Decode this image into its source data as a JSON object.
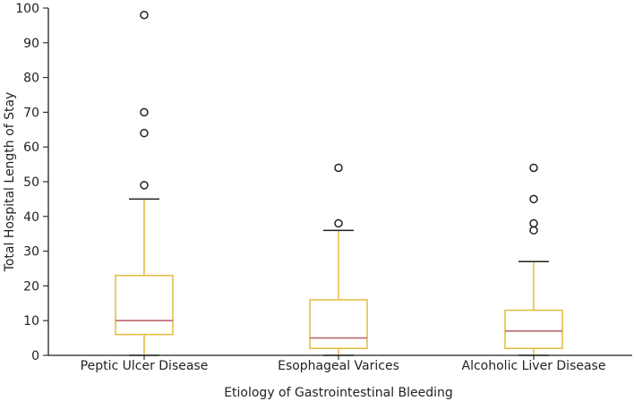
{
  "chart_data": {
    "type": "boxplot",
    "title": "",
    "xlabel": "Etiology of Gastrointestinal Bleeding",
    "ylabel": "Total Hospital Length of Stay",
    "ylim": [
      0,
      100
    ],
    "yticks": [
      0,
      10,
      20,
      30,
      40,
      50,
      60,
      70,
      80,
      90,
      100
    ],
    "grid": false,
    "categories": [
      "Peptic Ulcer Disease",
      "Esophageal Varices",
      "Alcoholic Liver Disease"
    ],
    "boxes": [
      {
        "category": "Peptic Ulcer Disease",
        "whisker_low": 0,
        "q1": 6,
        "median": 10,
        "q3": 23,
        "whisker_high": 45,
        "outliers": [
          49,
          64,
          70,
          98
        ]
      },
      {
        "category": "Esophageal Varices",
        "whisker_low": 0,
        "q1": 2,
        "median": 5,
        "q3": 16,
        "whisker_high": 36,
        "outliers": [
          38,
          54
        ]
      },
      {
        "category": "Alcoholic Liver Disease",
        "whisker_low": 0,
        "q1": 2,
        "median": 7,
        "q3": 13,
        "whisker_high": 27,
        "outliers": [
          36,
          38,
          45,
          54
        ]
      }
    ],
    "colors": {
      "box": "#e2bb3c",
      "median": "#b86a6f",
      "cap": "#222222",
      "axis": "#222222",
      "outlier": "#222222"
    }
  }
}
